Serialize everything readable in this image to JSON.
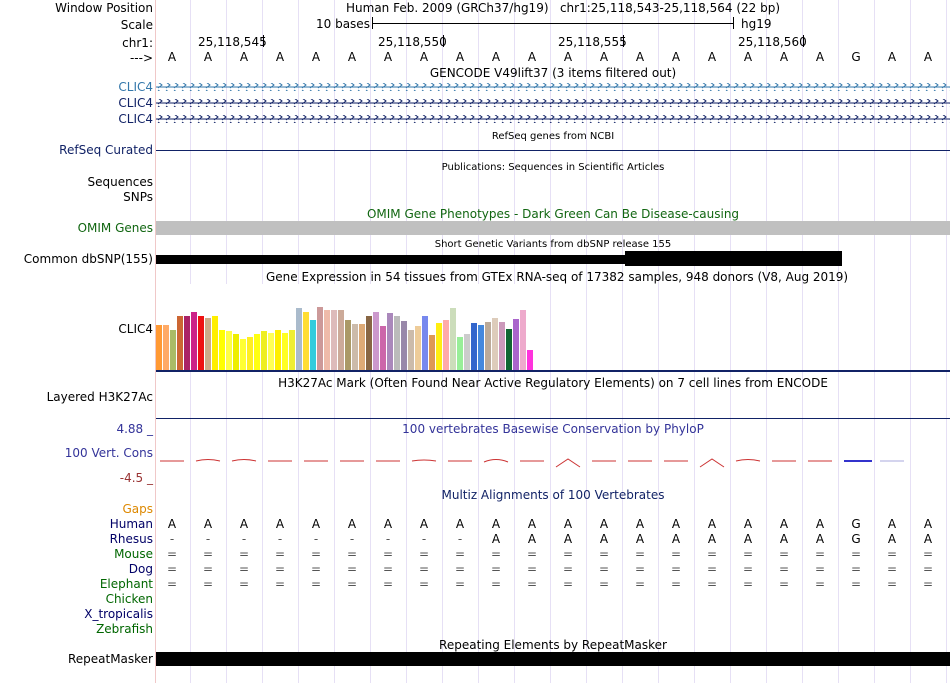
{
  "header": {
    "window_position_label": "Window Position",
    "window_position_value": "Human Feb. 2009 (GRCh37/hg19)   chr1:25,118,543-25,118,564 (22 bp)",
    "scale_label": "Scale",
    "scale_text": "10 bases",
    "scale_db": "hg19",
    "chrom_label": "chr1:",
    "chrom_ticks": [
      "25,118,545",
      "25,118,550",
      "25,118,555",
      "25,118,560"
    ],
    "strand_label": "--->"
  },
  "bases": [
    "A",
    "A",
    "A",
    "A",
    "A",
    "A",
    "A",
    "A",
    "A",
    "A",
    "A",
    "A",
    "A",
    "A",
    "A",
    "A",
    "A",
    "A",
    "A",
    "G",
    "A",
    "A"
  ],
  "gencode": {
    "title": "GENCODE V49lift37 (3 items filtered out)",
    "items": [
      "CLIC4",
      "CLIC4",
      "CLIC4"
    ]
  },
  "refseq": {
    "title": "RefSeq genes from NCBI",
    "label": "RefSeq Curated"
  },
  "publications": {
    "title": "Publications: Sequences in Scientific Articles",
    "labels": [
      "Sequences",
      "SNPs"
    ]
  },
  "omim": {
    "title": "OMIM Gene Phenotypes - Dark Green Can Be Disease-causing",
    "label": "OMIM Genes"
  },
  "dbsnp": {
    "title": "Short Genetic Variants from dbSNP release 155",
    "label": "Common dbSNP(155)"
  },
  "gtex": {
    "title": "Gene Expression in 54 tissues from GTEx RNA-seq of 17382 samples, 948 donors (V8, Aug 2019)",
    "label": "CLIC4",
    "values": [
      0.52,
      0.52,
      0.47,
      0.63,
      0.63,
      0.68,
      0.63,
      0.6,
      0.63,
      0.47,
      0.45,
      0.42,
      0.36,
      0.38,
      0.42,
      0.45,
      0.43,
      0.46,
      0.43,
      0.46,
      0.72,
      0.68,
      0.58,
      0.73,
      0.7,
      0.7,
      0.7,
      0.58,
      0.54,
      0.53,
      0.63,
      0.68,
      0.51,
      0.66,
      0.63,
      0.57,
      0.46,
      0.51,
      0.63,
      0.41,
      0.55,
      0.58,
      0.72,
      0.38,
      0.42,
      0.55,
      0.52,
      0.56,
      0.6,
      0.56,
      0.48,
      0.59,
      0.7,
      0.23
    ],
    "colors": [
      "#ff9933",
      "#ffaa66",
      "#aabb66",
      "#cc6633",
      "#aa2266",
      "#cc2288",
      "#ee1111",
      "#ccaa88",
      "#ffee00",
      "#ffff00",
      "#ffff44",
      "#eeee00",
      "#ffff33",
      "#ffee22",
      "#ffff11",
      "#eeee22",
      "#ffff55",
      "#ffee00",
      "#ffff22",
      "#eeee33",
      "#aabbcc",
      "#ffdd33",
      "#33ccdd",
      "#cc9999",
      "#eebbaa",
      "#ddbbbb",
      "#ccaa99",
      "#aa9966",
      "#ccbbaa",
      "#ddaa77",
      "#886644",
      "#cc99cc",
      "#cc66aa",
      "#aa88bb",
      "#bbbbbb",
      "#9988aa",
      "#ccbbaa",
      "#eecc99",
      "#7788ee",
      "#dd9955",
      "#ffee11",
      "#ffaaaa",
      "#ccddbb",
      "#99ee99",
      "#cccccc",
      "#3366cc",
      "#4488dd",
      "#bbaa99",
      "#ddccbb",
      "#cc99bb",
      "#116633",
      "#aa66cc",
      "#eeaacc",
      "#ff33dd"
    ]
  },
  "h3k27ac": {
    "title": "H3K27Ac Mark (Often Found Near Active Regulatory Elements) on 7 cell lines from ENCODE",
    "label": "Layered H3K27Ac"
  },
  "phylop": {
    "title": "100 vertebrates Basewise Conservation by PhyloP",
    "label": "100 Vert. Cons",
    "max": "4.88 _",
    "min": "-4.5 _"
  },
  "multiz": {
    "title": "Multiz Alignments of 100 Vertebrates",
    "gaps_label": "Gaps",
    "species": [
      {
        "name": "Human",
        "color": "#000066",
        "seq": [
          "A",
          "A",
          "A",
          "A",
          "A",
          "A",
          "A",
          "A",
          "A",
          "A",
          "A",
          "A",
          "A",
          "A",
          "A",
          "A",
          "A",
          "A",
          "A",
          "G",
          "A",
          "A"
        ]
      },
      {
        "name": "Rhesus",
        "color": "#000066",
        "seq": [
          "-",
          "-",
          "-",
          "-",
          "-",
          "-",
          "-",
          "-",
          "-",
          "A",
          "A",
          "A",
          "A",
          "A",
          "A",
          "A",
          "A",
          "A",
          "A",
          "G",
          "A",
          "A"
        ]
      },
      {
        "name": "Mouse",
        "color": "#006600",
        "seq": [
          "=",
          "=",
          "=",
          "=",
          "=",
          "=",
          "=",
          "=",
          "=",
          "=",
          "=",
          "=",
          "=",
          "=",
          "=",
          "=",
          "=",
          "=",
          "=",
          "=",
          "=",
          "="
        ]
      },
      {
        "name": "Dog",
        "color": "#000066",
        "seq": [
          "=",
          "=",
          "=",
          "=",
          "=",
          "=",
          "=",
          "=",
          "=",
          "=",
          "=",
          "=",
          "=",
          "=",
          "=",
          "=",
          "=",
          "=",
          "=",
          "=",
          "=",
          "="
        ]
      },
      {
        "name": "Elephant",
        "color": "#006600",
        "seq": [
          "=",
          "=",
          "=",
          "=",
          "=",
          "=",
          "=",
          "=",
          "=",
          "=",
          "=",
          "=",
          "=",
          "=",
          "=",
          "=",
          "=",
          "=",
          "=",
          "=",
          "=",
          "="
        ]
      },
      {
        "name": "Chicken",
        "color": "#006600",
        "seq": []
      },
      {
        "name": "X_tropicalis",
        "color": "#000066",
        "seq": []
      },
      {
        "name": "Zebrafish",
        "color": "#006600",
        "seq": []
      }
    ]
  },
  "repeatmasker": {
    "title": "Repeating Elements by RepeatMasker",
    "label": "RepeatMasker"
  }
}
